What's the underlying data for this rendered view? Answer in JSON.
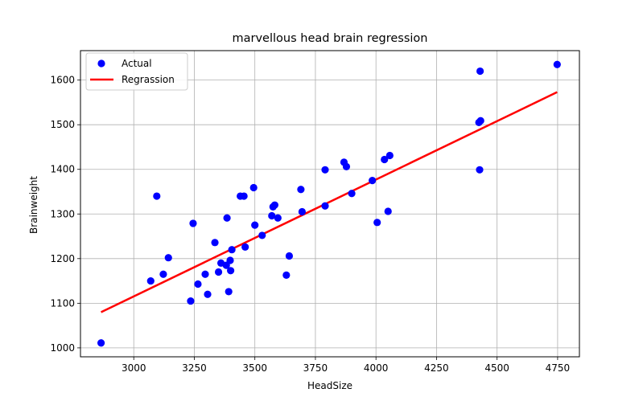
{
  "chart_data": {
    "type": "scatter",
    "title": "marvellous head brain regression",
    "xlabel": "HeadSize",
    "ylabel": "Brainweight",
    "xlim": [
      2780,
      4840
    ],
    "ylim": [
      980,
      1666
    ],
    "xticks": [
      3000,
      3250,
      3500,
      3750,
      4000,
      4250,
      4500,
      4750
    ],
    "yticks": [
      1000,
      1100,
      1200,
      1300,
      1400,
      1500,
      1600
    ],
    "grid": true,
    "legend_position": "upper-left",
    "series": [
      {
        "name": "Actual",
        "kind": "scatter",
        "color": "#0000ff",
        "points": [
          [
            2865,
            1011
          ],
          [
            3070,
            1150
          ],
          [
            3095,
            1340
          ],
          [
            3122,
            1165
          ],
          [
            3143,
            1202
          ],
          [
            3235,
            1105
          ],
          [
            3245,
            1279
          ],
          [
            3265,
            1143
          ],
          [
            3295,
            1165
          ],
          [
            3305,
            1120
          ],
          [
            3335,
            1236
          ],
          [
            3350,
            1170
          ],
          [
            3360,
            1190
          ],
          [
            3382,
            1185
          ],
          [
            3385,
            1291
          ],
          [
            3392,
            1126
          ],
          [
            3398,
            1196
          ],
          [
            3400,
            1173
          ],
          [
            3405,
            1220
          ],
          [
            3440,
            1340
          ],
          [
            3455,
            1340
          ],
          [
            3460,
            1226
          ],
          [
            3495,
            1359
          ],
          [
            3500,
            1275
          ],
          [
            3530,
            1252
          ],
          [
            3570,
            1296
          ],
          [
            3575,
            1316
          ],
          [
            3582,
            1320
          ],
          [
            3595,
            1291
          ],
          [
            3630,
            1163
          ],
          [
            3642,
            1206
          ],
          [
            3690,
            1355
          ],
          [
            3695,
            1305
          ],
          [
            3790,
            1399
          ],
          [
            3790,
            1318
          ],
          [
            3868,
            1416
          ],
          [
            3878,
            1406
          ],
          [
            3900,
            1346
          ],
          [
            3985,
            1375
          ],
          [
            4005,
            1281
          ],
          [
            4035,
            1422
          ],
          [
            4050,
            1306
          ],
          [
            4057,
            1431
          ],
          [
            4425,
            1505
          ],
          [
            4428,
            1399
          ],
          [
            4430,
            1620
          ],
          [
            4432,
            1509
          ],
          [
            4748,
            1635
          ]
        ]
      },
      {
        "name": "Regrassion",
        "kind": "line",
        "color": "#ff0000",
        "points": [
          [
            2865,
            1080
          ],
          [
            4748,
            1573
          ]
        ]
      }
    ]
  }
}
